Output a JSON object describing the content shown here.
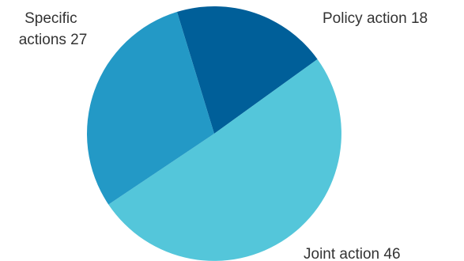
{
  "chart_data": {
    "type": "pie",
    "title": "",
    "slices": [
      {
        "label": "Policy action",
        "value": 18,
        "color": "#005f99"
      },
      {
        "label": "Joint action",
        "value": 46,
        "color": "#54c6da"
      },
      {
        "label": "Specific actions",
        "value": 27,
        "color": "#2399c6"
      }
    ],
    "labels": {
      "policy": {
        "line1": "Policy action 18"
      },
      "joint": {
        "line1": "Joint action 46"
      },
      "specific": {
        "line1": "Specific",
        "line2": "actions 27"
      }
    },
    "start_angle_deg": -17,
    "direction": "clockwise",
    "legend": "none"
  }
}
